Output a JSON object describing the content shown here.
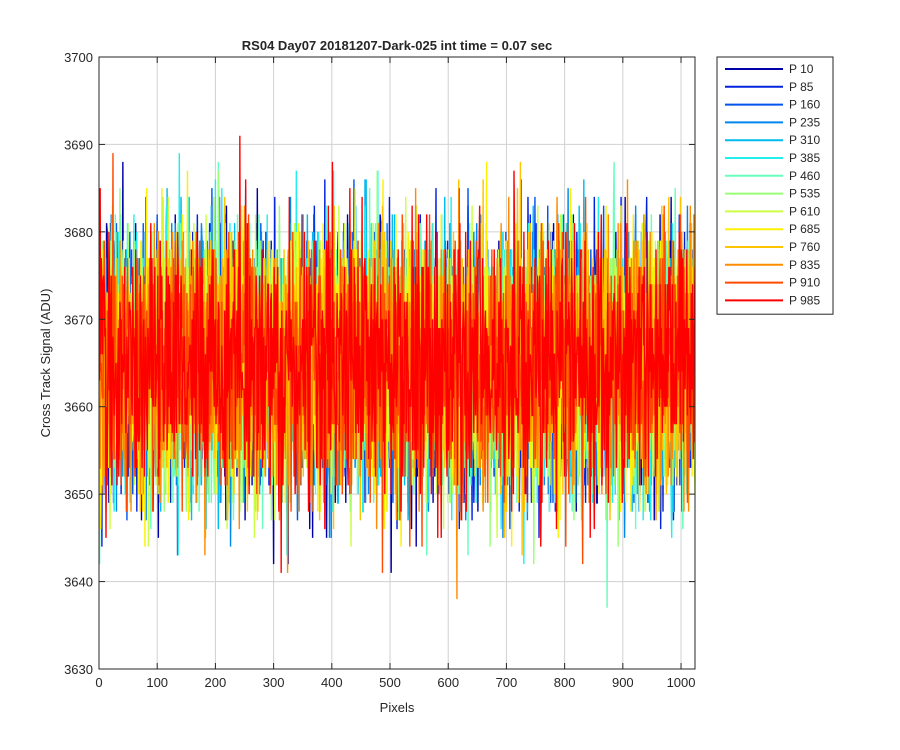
{
  "chart_data": {
    "type": "line",
    "title": "RS04 Day07 20181207-Dark-025 int time = 0.07 sec",
    "xlabel": "Pixels",
    "ylabel": "Cross Track Signal (ADU)",
    "xlim": [
      0,
      1024
    ],
    "ylim": [
      3630,
      3700
    ],
    "xticks": [
      0,
      100,
      200,
      300,
      400,
      500,
      600,
      700,
      800,
      900,
      1000
    ],
    "yticks": [
      3630,
      3640,
      3650,
      3660,
      3670,
      3680,
      3690,
      3700
    ],
    "grid": true,
    "legend_position": "outside-top-right",
    "noise_model": {
      "mean": 3665,
      "std": 7.5,
      "min": 3636,
      "max": 3694
    },
    "series": [
      {
        "name": "P 10",
        "color": "#0000AA"
      },
      {
        "name": "P 85",
        "color": "#0022DD"
      },
      {
        "name": "P 160",
        "color": "#0055EE"
      },
      {
        "name": "P 235",
        "color": "#0088EE"
      },
      {
        "name": "P 310",
        "color": "#00BBEE"
      },
      {
        "name": "P 385",
        "color": "#22EEEE"
      },
      {
        "name": "P 460",
        "color": "#66FFBB"
      },
      {
        "name": "P 535",
        "color": "#99FF77"
      },
      {
        "name": "P 610",
        "color": "#CCFF44"
      },
      {
        "name": "P 685",
        "color": "#FFF000"
      },
      {
        "name": "P 760",
        "color": "#FFC400"
      },
      {
        "name": "P 835",
        "color": "#FF8C00"
      },
      {
        "name": "P 910",
        "color": "#FF4A00"
      },
      {
        "name": "P 985",
        "color": "#FF0000"
      }
    ]
  }
}
